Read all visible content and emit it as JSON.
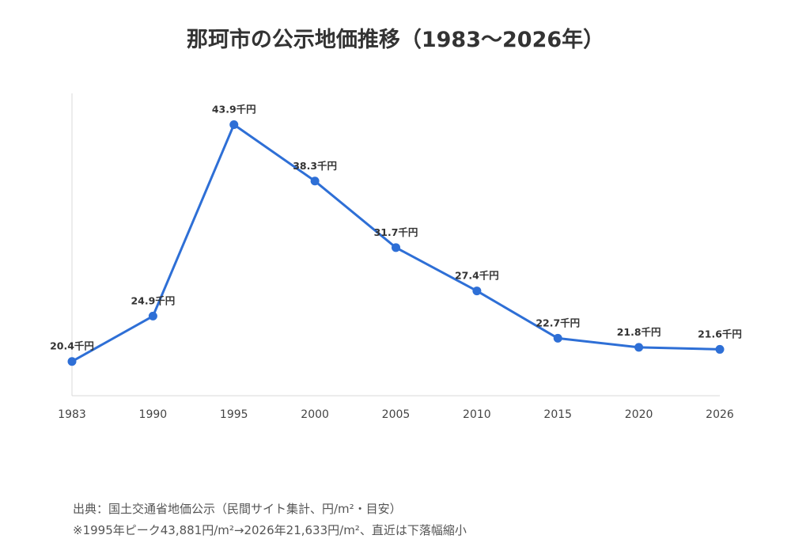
{
  "title": "那珂市の公示地価推移（1983〜2026年）",
  "chart_data": {
    "type": "line",
    "x": [
      "1983",
      "1990",
      "1995",
      "2000",
      "2005",
      "2010",
      "2015",
      "2020",
      "2026"
    ],
    "series": [
      {
        "values": [
          20.4,
          24.9,
          43.9,
          38.3,
          31.7,
          27.4,
          22.7,
          21.8,
          21.6
        ],
        "labels": [
          "20.4千円",
          "24.9千円",
          "43.9千円",
          "38.3千円",
          "31.7千円",
          "27.4千円",
          "22.7千円",
          "21.8千円",
          "21.6千円"
        ],
        "color": "#2e6fd6"
      }
    ],
    "ylim": [
      17,
      47
    ],
    "grid": false,
    "legend": "none"
  },
  "notes": {
    "source": "出典：国土交通省地価公示（民間サイト集計、円/m²・目安）",
    "summary": "※1995年ピーク43,881円/m²→2026年21,633円/m²、直近は下落幅縮小"
  },
  "colors": {
    "line": "#2e6fd6",
    "axis": "#cccccc",
    "text": "#333333"
  }
}
